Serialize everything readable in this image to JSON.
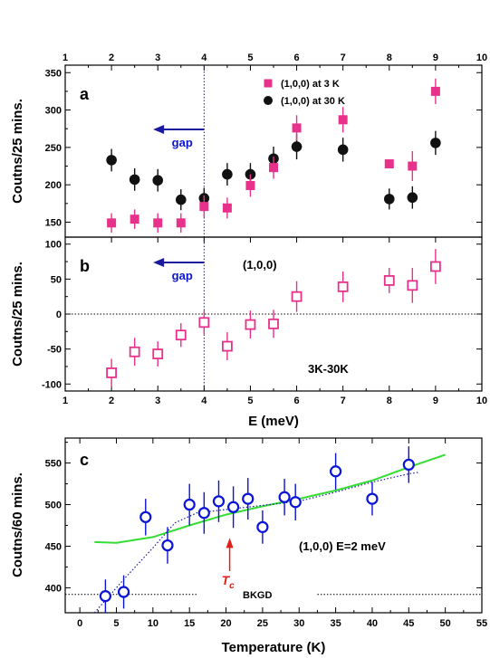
{
  "chart_data": [
    {
      "panel": "a",
      "type": "scatter",
      "ylabel": "Coutns/25 mins.",
      "xlim": [
        1,
        10
      ],
      "ylim": [
        130,
        360
      ],
      "xticks": [
        1,
        2,
        3,
        4,
        5,
        6,
        7,
        8,
        9,
        10
      ],
      "yticks": [
        150,
        200,
        250,
        300,
        350
      ],
      "series": [
        {
          "name": "(1,0,0) at 3 K",
          "marker": "square-filled",
          "color": "#e8318a",
          "x": [
            2,
            2.5,
            3,
            3.5,
            4,
            4.5,
            5,
            5.5,
            6,
            7,
            8,
            8.5,
            9
          ],
          "y": [
            149,
            154,
            149,
            149,
            171,
            169,
            199,
            223,
            276,
            287,
            228,
            225,
            325
          ],
          "err": [
            13,
            13,
            13,
            13,
            15,
            14,
            15,
            15,
            17,
            17,
            0,
            20,
            17
          ]
        },
        {
          "name": "(1,0,0) at 30 K",
          "marker": "circle-filled",
          "color": "#111111",
          "x": [
            2,
            2.5,
            3,
            3.5,
            4,
            4.5,
            5,
            5.5,
            6,
            7,
            8,
            8.5,
            9
          ],
          "y": [
            233,
            207,
            206,
            180,
            182,
            214,
            214,
            235,
            251,
            247,
            181,
            183,
            256
          ],
          "err": [
            15,
            15,
            15,
            14,
            14,
            15,
            15,
            16,
            17,
            16,
            14,
            15,
            16
          ]
        }
      ],
      "annotations": {
        "panel_label": "a",
        "gap_label": "gap",
        "dashed_x": 4,
        "arrow_from_x": 4,
        "arrow_to_x": 2.9
      }
    },
    {
      "panel": "b",
      "type": "scatter",
      "ylabel": "Coutns/25 mins.",
      "xlabel": "E (meV)",
      "xlim": [
        1,
        10
      ],
      "ylim": [
        -110,
        110
      ],
      "xticks": [
        1,
        2,
        3,
        4,
        5,
        6,
        7,
        8,
        9,
        10
      ],
      "yticks": [
        -100,
        -50,
        0,
        50,
        100
      ],
      "series": [
        {
          "name": "(1,0,0)",
          "marker": "square-open",
          "color": "#e8318a",
          "x": [
            2,
            2.5,
            3,
            3.5,
            4,
            4.5,
            5,
            5.5,
            6,
            7,
            8,
            8.5,
            9
          ],
          "y": [
            -84,
            -54,
            -57,
            -30,
            -12,
            -46,
            -15,
            -14,
            25,
            39,
            48,
            41,
            68
          ],
          "err": [
            20,
            20,
            18,
            17,
            17,
            20,
            20,
            20,
            22,
            22,
            18,
            25,
            25
          ]
        }
      ],
      "annotations": {
        "panel_label": "b",
        "gap_label": "gap",
        "series_label": "(1,0,0)",
        "corner_label": "3K-30K",
        "zero_line": 0,
        "dashed_x": 4,
        "arrow_from_x": 4,
        "arrow_to_x": 2.9
      }
    },
    {
      "panel": "c",
      "type": "scatter",
      "ylabel": "Coutns/60 mins.",
      "xlabel": "Temperature (K)",
      "xlim": [
        -2,
        55
      ],
      "ylim": [
        370,
        580
      ],
      "xticks": [
        0,
        5,
        10,
        15,
        20,
        25,
        30,
        35,
        40,
        45,
        50,
        55
      ],
      "yticks": [
        400,
        450,
        500,
        550
      ],
      "series": [
        {
          "name": "data",
          "marker": "circle-open",
          "color": "#0a14d6",
          "x": [
            3.5,
            6,
            9,
            12,
            15,
            17,
            19,
            21,
            23,
            25,
            28,
            29.5,
            35,
            40,
            45
          ],
          "y": [
            390,
            395,
            485,
            451,
            500,
            490,
            504,
            497,
            507,
            473,
            509,
            503,
            540,
            507,
            548
          ],
          "err": [
            20,
            20,
            22,
            22,
            25,
            25,
            25,
            25,
            25,
            20,
            22,
            22,
            22,
            20,
            22
          ]
        }
      ],
      "fit_curve": {
        "color": "#33dd33",
        "x": [
          2,
          5,
          10,
          15,
          20,
          25,
          30,
          35,
          40,
          45,
          50
        ],
        "y": [
          455,
          454,
          461,
          475,
          488,
          498,
          507,
          517,
          529,
          545,
          560
        ]
      },
      "trend_line": {
        "color": "#1a1aa0",
        "x": [
          2,
          6,
          10,
          13,
          16,
          20,
          25,
          30,
          35,
          40,
          45,
          46.5
        ],
        "y": [
          370,
          410,
          448,
          478,
          490,
          494,
          499,
          504,
          515,
          527,
          537,
          539
        ]
      },
      "background": {
        "level": 392,
        "label": "BKGD"
      },
      "tc": {
        "x": 20.5,
        "label": "T",
        "sub": "c"
      },
      "annotations": {
        "panel_label": "c",
        "condition_label": "(1,0,0)   E=2 meV"
      }
    }
  ]
}
